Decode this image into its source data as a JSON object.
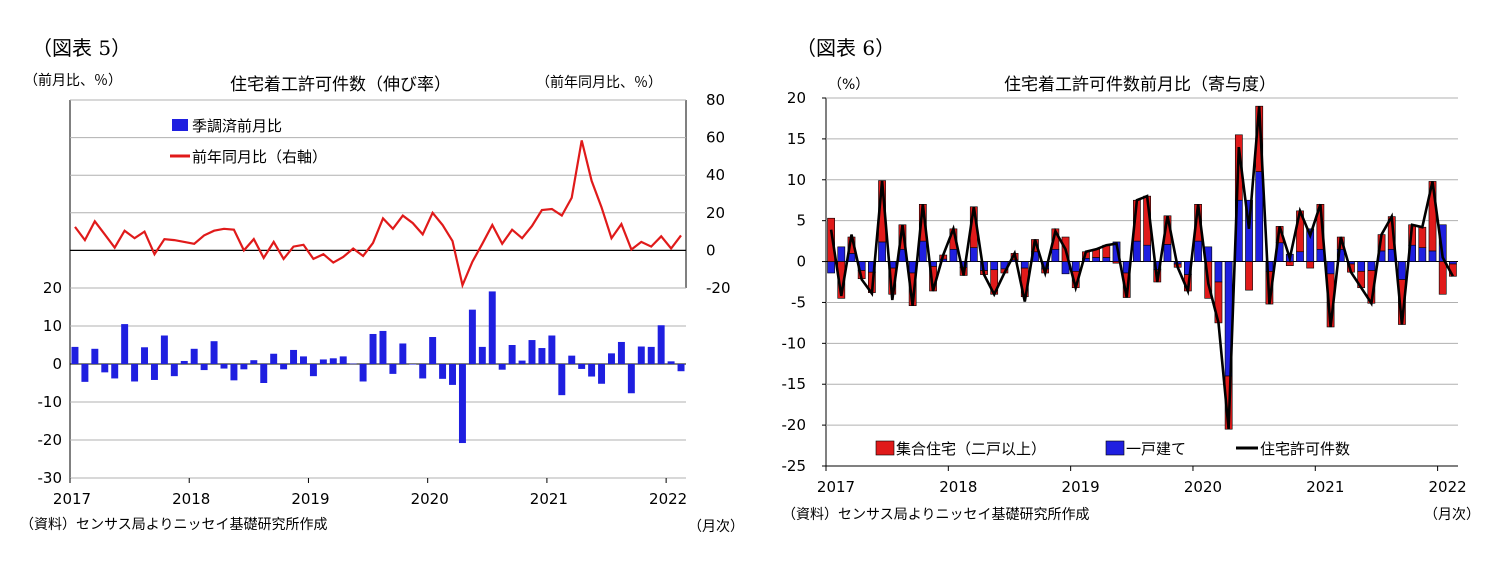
{
  "fig5": {
    "label": "（図表 5）",
    "title": "住宅着工許可件数（伸び率）",
    "left_unit": "（前月比、％）",
    "right_unit": "（前年同月比、％）",
    "source": "（資料）センサス局よりニッセイ基礎研究所作成",
    "x_unit": "（月次）"
  },
  "fig6": {
    "label": "（図表 6）",
    "title": "住宅着工許可件数前月比（寄与度）",
    "y_unit": "（%）",
    "source": "（資料）センサス局よりニッセイ基礎研究所作成",
    "x_unit": "（月次）"
  },
  "colors": {
    "bar_blue": "#1f1fe0",
    "line_red": "#e01a1a",
    "bar_red": "#e01a1a",
    "line_black": "#000000"
  },
  "chart_data": [
    {
      "type": "bar+line",
      "title": "住宅着工許可件数（伸び率）",
      "categories": [
        "2017-01",
        "2017-02",
        "2017-03",
        "2017-04",
        "2017-05",
        "2017-06",
        "2017-07",
        "2017-08",
        "2017-09",
        "2017-10",
        "2017-11",
        "2017-12",
        "2018-01",
        "2018-02",
        "2018-03",
        "2018-04",
        "2018-05",
        "2018-06",
        "2018-07",
        "2018-08",
        "2018-09",
        "2018-10",
        "2018-11",
        "2018-12",
        "2019-01",
        "2019-02",
        "2019-03",
        "2019-04",
        "2019-05",
        "2019-06",
        "2019-07",
        "2019-08",
        "2019-09",
        "2019-10",
        "2019-11",
        "2019-12",
        "2020-01",
        "2020-02",
        "2020-03",
        "2020-04",
        "2020-05",
        "2020-06",
        "2020-07",
        "2020-08",
        "2020-09",
        "2020-10",
        "2020-11",
        "2020-12",
        "2021-01",
        "2021-02",
        "2021-03",
        "2021-04",
        "2021-05",
        "2021-06",
        "2021-07",
        "2021-08",
        "2021-09",
        "2021-10",
        "2021-11",
        "2021-12",
        "2022-01",
        "2022-02"
      ],
      "x_tick_labels": [
        "2017",
        "2018",
        "2019",
        "2020",
        "2021",
        "2022"
      ],
      "left_axis": {
        "ylim": [
          -30,
          20
        ],
        "ticks": [
          "20",
          "10",
          "0",
          "-10",
          "-20",
          "-30"
        ]
      },
      "right_axis": {
        "ylim": [
          -20,
          80
        ],
        "ticks": [
          "80",
          "60",
          "40",
          "20",
          "0",
          "-20"
        ]
      },
      "series": [
        {
          "name": "季調済前月比",
          "kind": "bar",
          "axis": "left",
          "values": [
            4.5,
            -4.7,
            4.0,
            -2.2,
            -3.8,
            10.5,
            -4.6,
            4.4,
            -4.2,
            7.5,
            -3.2,
            0.8,
            4.0,
            -1.6,
            6.0,
            -1.2,
            -4.3,
            -1.4,
            1.0,
            -5.0,
            2.7,
            -1.4,
            3.7,
            2.0,
            -3.2,
            1.2,
            1.5,
            2.0,
            0.1,
            -4.6,
            7.9,
            8.7,
            -2.6,
            5.4,
            0.0,
            -3.8,
            7.1,
            -3.9,
            -5.5,
            -20.8,
            14.3,
            4.5,
            19.1,
            -1.5,
            5.0,
            0.9,
            6.3,
            4.2,
            7.5,
            -8.2,
            2.2,
            -1.3,
            -3.3,
            -5.2,
            2.8,
            5.8,
            -7.7,
            4.6,
            4.5,
            10.2,
            0.7,
            -1.9
          ]
        },
        {
          "name": "前年同月比（右軸）",
          "kind": "line",
          "axis": "right",
          "values": [
            12.5,
            5.5,
            15.5,
            8.5,
            1.5,
            10.5,
            6.5,
            10.0,
            -2.0,
            6.0,
            5.5,
            4.5,
            3.5,
            8.0,
            10.5,
            11.5,
            11.0,
            0.0,
            6.0,
            -4.0,
            4.5,
            -4.5,
            2.0,
            3.0,
            -4.5,
            -2.0,
            -6.5,
            -3.5,
            1.0,
            -3.0,
            4.0,
            17.0,
            11.5,
            18.5,
            14.5,
            8.5,
            20.0,
            13.5,
            5.0,
            -18.5,
            -6.0,
            3.5,
            13.5,
            3.5,
            11.0,
            6.5,
            13.0,
            21.5,
            22.0,
            18.5,
            28.0,
            58.5,
            37.0,
            23.0,
            6.5,
            14.0,
            0.5,
            4.5,
            2.0,
            7.5,
            1.0,
            8.0
          ]
        }
      ]
    },
    {
      "type": "stacked-bar+line",
      "title": "住宅着工許可件数前月比（寄与度）",
      "categories": [
        "2017-01",
        "2017-02",
        "2017-03",
        "2017-04",
        "2017-05",
        "2017-06",
        "2017-07",
        "2017-08",
        "2017-09",
        "2017-10",
        "2017-11",
        "2017-12",
        "2018-01",
        "2018-02",
        "2018-03",
        "2018-04",
        "2018-05",
        "2018-06",
        "2018-07",
        "2018-08",
        "2018-09",
        "2018-10",
        "2018-11",
        "2018-12",
        "2019-01",
        "2019-02",
        "2019-03",
        "2019-04",
        "2019-05",
        "2019-06",
        "2019-07",
        "2019-08",
        "2019-09",
        "2019-10",
        "2019-11",
        "2019-12",
        "2020-01",
        "2020-02",
        "2020-03",
        "2020-04",
        "2020-05",
        "2020-06",
        "2020-07",
        "2020-08",
        "2020-09",
        "2020-10",
        "2020-11",
        "2020-12",
        "2021-01",
        "2021-02",
        "2021-03",
        "2021-04",
        "2021-05",
        "2021-06",
        "2021-07",
        "2021-08",
        "2021-09",
        "2021-10",
        "2021-11",
        "2021-12",
        "2022-01",
        "2022-02"
      ],
      "x_tick_labels": [
        "2017",
        "2018",
        "2019",
        "2020",
        "2021",
        "2022"
      ],
      "ylim": [
        -25,
        20
      ],
      "y_ticks": [
        "20",
        "15",
        "10",
        "5",
        "0",
        "-5",
        "-10",
        "-15",
        "-20",
        "-25"
      ],
      "series": [
        {
          "name": "集合住宅（二戸以上）",
          "kind": "bar",
          "stack": true,
          "values": [
            5.3,
            -4.5,
            2.0,
            -1.0,
            -2.5,
            7.5,
            -3.2,
            3.0,
            -4.0,
            4.5,
            -3.0,
            0.5,
            2.5,
            -1.0,
            5.0,
            -0.5,
            -3.0,
            -0.5,
            0.8,
            -3.5,
            1.5,
            -0.5,
            2.5,
            3.0,
            -2.0,
            0.8,
            1.0,
            1.5,
            -0.2,
            -3.0,
            5.0,
            6.0,
            -1.5,
            3.5,
            -0.4,
            -2.0,
            4.5,
            -4.5,
            -5.0,
            -6.5,
            8.0,
            -3.5,
            8.0,
            -4.0,
            2.0,
            -0.5,
            5.0,
            -0.8,
            5.5,
            -6.5,
            1.5,
            -1.0,
            -2.0,
            -4.0,
            2.0,
            4.0,
            -5.5,
            2.5,
            2.5,
            8.5,
            -4.0,
            -1.5
          ]
        },
        {
          "name": "一戸建て",
          "kind": "bar",
          "stack": true,
          "values": [
            -1.4,
            1.8,
            1.0,
            -1.1,
            -1.3,
            2.4,
            -0.8,
            1.5,
            -1.4,
            2.5,
            -0.6,
            0.3,
            1.5,
            -0.7,
            1.7,
            -1.1,
            -1.0,
            -0.9,
            0.2,
            -0.8,
            1.2,
            -0.9,
            1.5,
            -1.5,
            -1.2,
            0.4,
            0.5,
            0.5,
            2.4,
            -1.4,
            2.5,
            2.0,
            -1.0,
            2.1,
            -0.3,
            -1.6,
            2.5,
            1.8,
            -2.5,
            -14.0,
            7.5,
            7.5,
            11.0,
            -1.2,
            2.3,
            0.9,
            1.2,
            4.0,
            1.5,
            -1.5,
            1.5,
            -0.3,
            -1.2,
            -1.1,
            1.3,
            1.5,
            -2.2,
            2.0,
            1.7,
            1.3,
            4.5,
            -0.3
          ]
        },
        {
          "name": "住宅許可件数",
          "kind": "line",
          "values": [
            3.9,
            -4.2,
            3.3,
            -2.2,
            -3.9,
            9.9,
            -4.7,
            4.5,
            -5.4,
            7.0,
            -3.6,
            0.8,
            4.0,
            -1.7,
            6.7,
            -1.6,
            -4.0,
            -1.4,
            1.0,
            -4.9,
            2.7,
            -1.4,
            3.7,
            1.5,
            -3.2,
            1.2,
            1.5,
            2.0,
            2.2,
            -4.4,
            7.5,
            8.0,
            -2.5,
            5.6,
            -0.7,
            -3.6,
            7.0,
            -2.7,
            -7.5,
            -20.5,
            14.0,
            4.0,
            19.0,
            -5.2,
            4.3,
            0.4,
            6.2,
            3.2,
            7.0,
            -8.0,
            3.0,
            -1.3,
            -3.2,
            -5.1,
            3.3,
            5.5,
            -7.7,
            4.5,
            4.2,
            9.8,
            0.5,
            -1.8
          ]
        }
      ]
    }
  ]
}
